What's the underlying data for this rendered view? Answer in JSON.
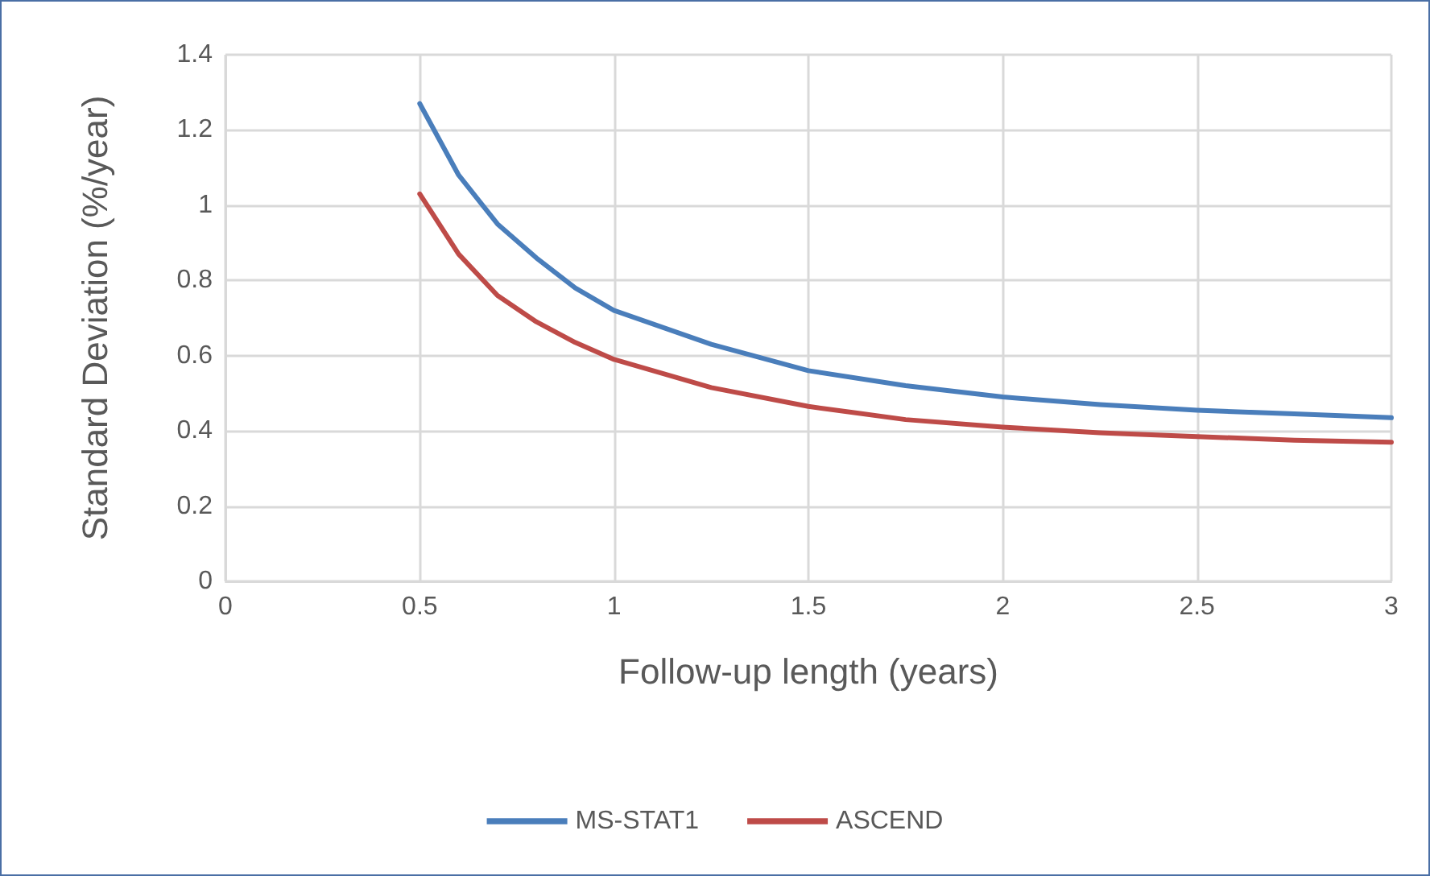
{
  "chart_data": {
    "type": "line",
    "xlabel": "Follow-up length (years)",
    "ylabel": "Standard Deviation (%/year)",
    "x": [
      0.5,
      0.6,
      0.7,
      0.8,
      0.9,
      1,
      1.25,
      1.5,
      1.75,
      2,
      2.25,
      2.5,
      2.75,
      3
    ],
    "series": [
      {
        "name": "MS-STAT1",
        "color": "#4a7ebb",
        "values": [
          1.27,
          1.08,
          0.95,
          0.86,
          0.78,
          0.72,
          0.63,
          0.56,
          0.52,
          0.49,
          0.47,
          0.455,
          0.445,
          0.435
        ]
      },
      {
        "name": "ASCEND",
        "color": "#be4b48",
        "values": [
          1.03,
          0.87,
          0.76,
          0.69,
          0.635,
          0.59,
          0.515,
          0.465,
          0.43,
          0.41,
          0.395,
          0.385,
          0.375,
          0.37
        ]
      }
    ],
    "xlim": [
      0,
      3
    ],
    "xticks": [
      0,
      0.5,
      1,
      1.5,
      2,
      2.5,
      3
    ],
    "ylim": [
      0,
      1.4
    ],
    "yticks": [
      0,
      0.2,
      0.4,
      0.6,
      0.8,
      1,
      1.2,
      1.4
    ],
    "grid": true,
    "legend": "bottom",
    "marker": "none",
    "line_style": "solid"
  }
}
